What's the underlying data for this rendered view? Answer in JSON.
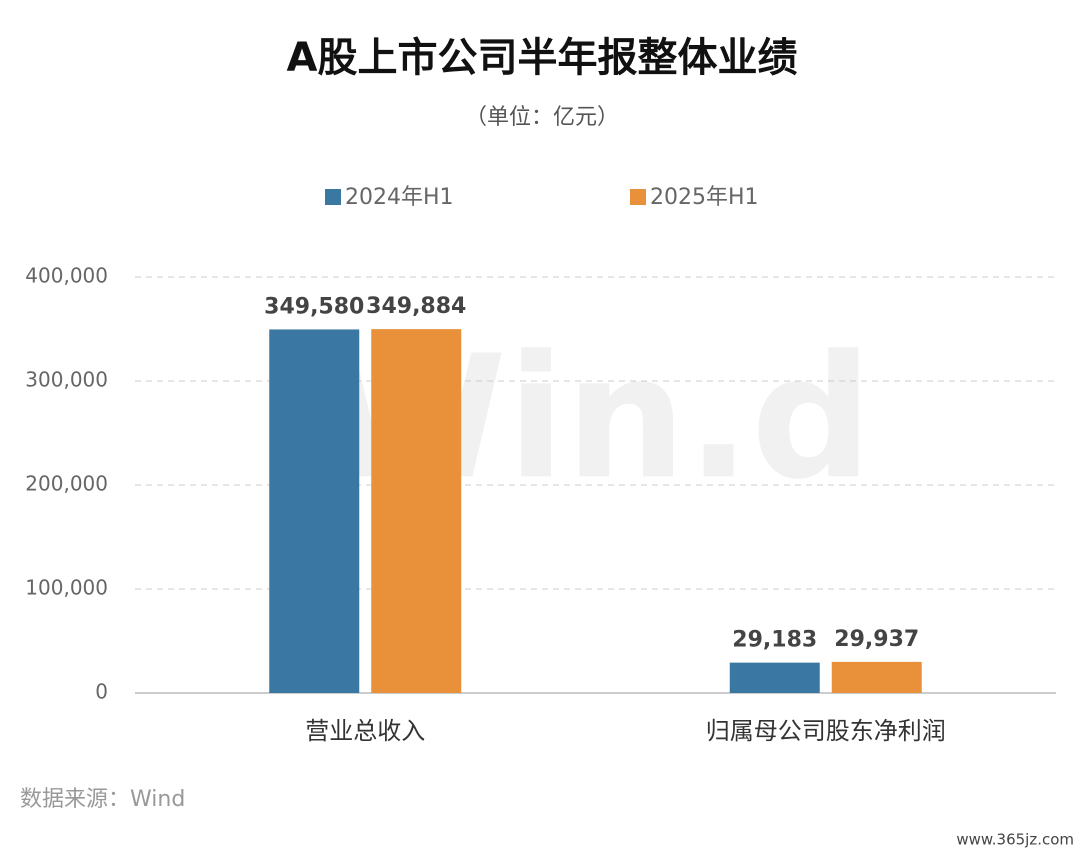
{
  "chart_data": {
    "type": "bar",
    "title": "A股上市公司半年报整体业绩",
    "subtitle": "（单位：亿元）",
    "categories": [
      "营业总收入",
      "归属母公司股东净利润"
    ],
    "series": [
      {
        "name": "2024年H1",
        "color": "#3b77a3",
        "values": [
          349580,
          29183
        ],
        "value_labels": [
          "349,580",
          "29,183"
        ]
      },
      {
        "name": "2025年H1",
        "color": "#e8913a",
        "values": [
          349884,
          29937
        ],
        "value_labels": [
          "349,884",
          "29,937"
        ]
      }
    ],
    "ylim": [
      0,
      400000
    ],
    "yticks": [
      0,
      {
        "value": 100000,
        "label": "100,000"
      },
      {
        "value": 200000,
        "label": "200,000"
      },
      {
        "value": 300000,
        "label": "300,000"
      },
      {
        "value": 400000,
        "label": "400,000"
      }
    ],
    "grid": true,
    "source": "数据来源：Wind",
    "watermark": "Win.d",
    "site_watermark": "www.365jz.com"
  }
}
